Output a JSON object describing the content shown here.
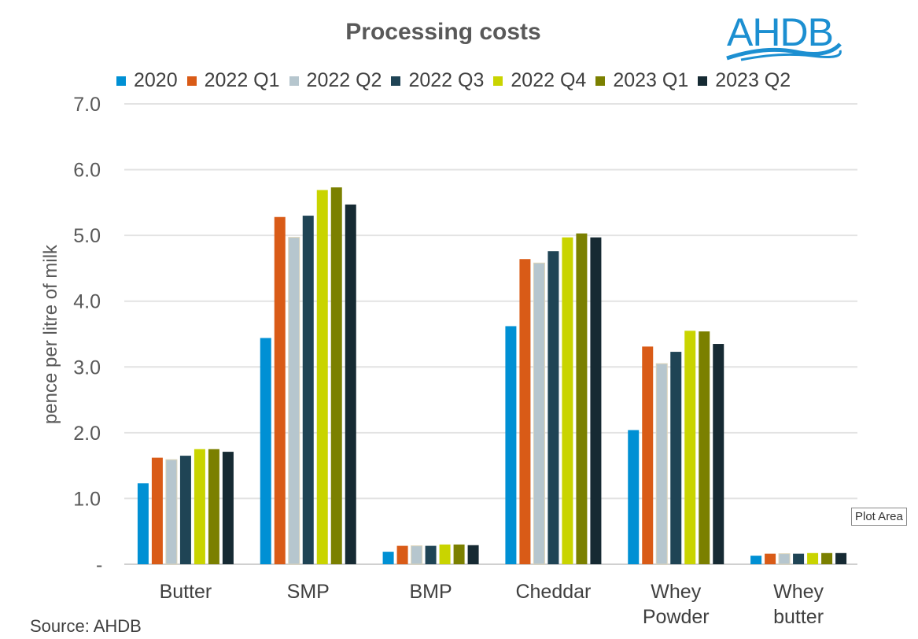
{
  "logo_text": "AHDB",
  "source": "Source: AHDB",
  "tooltip": "Plot Area",
  "chart_data": {
    "type": "bar",
    "title": "Processing costs",
    "xlabel": "",
    "ylabel": "pence per litre of milk",
    "ylim": [
      0,
      7
    ],
    "yticks": [
      0,
      1,
      2,
      3,
      4,
      5,
      6,
      7
    ],
    "ytick_labels": [
      "-",
      "1.0",
      "2.0",
      "3.0",
      "4.0",
      "5.0",
      "6.0",
      "7.0"
    ],
    "grid": true,
    "legend_position": "top",
    "categories": [
      [
        "Butter"
      ],
      [
        "SMP"
      ],
      [
        "BMP"
      ],
      [
        "Cheddar"
      ],
      [
        "Whey",
        "Powder"
      ],
      [
        "Whey",
        "butter"
      ]
    ],
    "series": [
      {
        "name": "2020",
        "color": "#0090D4",
        "values": [
          1.23,
          3.44,
          0.19,
          3.62,
          2.04,
          0.13
        ]
      },
      {
        "name": "2022 Q1",
        "color": "#D95B17",
        "values": [
          1.62,
          5.28,
          0.28,
          4.64,
          3.31,
          0.16
        ]
      },
      {
        "name": "2022 Q2",
        "color": "#B6C6CE",
        "values": [
          1.59,
          4.97,
          0.28,
          4.58,
          3.05,
          0.16
        ]
      },
      {
        "name": "2022 Q3",
        "color": "#1F4455",
        "values": [
          1.65,
          5.3,
          0.28,
          4.76,
          3.23,
          0.16
        ]
      },
      {
        "name": "2022 Q4",
        "color": "#C9D400",
        "values": [
          1.75,
          5.69,
          0.3,
          4.97,
          3.55,
          0.17
        ]
      },
      {
        "name": "2023 Q1",
        "color": "#7B8000",
        "values": [
          1.75,
          5.73,
          0.3,
          5.03,
          3.54,
          0.17
        ]
      },
      {
        "name": "2023 Q2",
        "color": "#162A33",
        "values": [
          1.71,
          5.47,
          0.29,
          4.97,
          3.35,
          0.17
        ]
      }
    ]
  }
}
